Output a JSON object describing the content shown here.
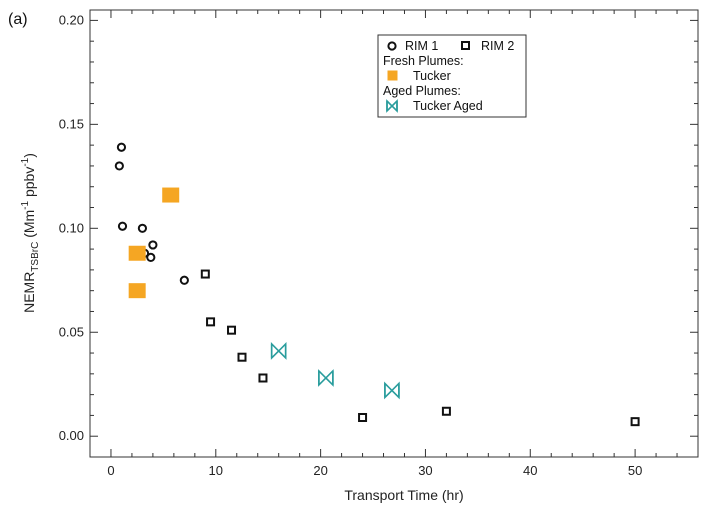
{
  "chart_data": {
    "type": "scatter",
    "panel_label": "(a)",
    "xlabel": "Transport Time (hr)",
    "ylabel": {
      "base": "NEMR",
      "sub": "TSBrC",
      "rest": " (Mm",
      "sup1": "-1",
      "mid": " ppbv",
      "sup2": "-1",
      "end": ")"
    },
    "xlim": [
      -2,
      56
    ],
    "ylim": [
      -0.01,
      0.205
    ],
    "x_ticks": [
      0,
      10,
      20,
      30,
      40,
      50
    ],
    "y_ticks": [
      0.0,
      0.05,
      0.1,
      0.15,
      0.2
    ],
    "y_tick_labels": [
      "0.00",
      "0.05",
      "0.10",
      "0.15",
      "0.20"
    ],
    "x_tick_labels": [
      "0",
      "10",
      "20",
      "30",
      "40",
      "50"
    ],
    "series": [
      {
        "name": "RIM 1",
        "marker": "circle",
        "color": "#111111",
        "x": [
          0.8,
          1.0,
          1.1,
          3.0,
          3.2,
          3.8,
          4.0,
          7.0
        ],
        "y": [
          0.13,
          0.139,
          0.101,
          0.1,
          0.088,
          0.086,
          0.092,
          0.075
        ]
      },
      {
        "name": "RIM 2",
        "marker": "square-open",
        "color": "#111111",
        "x": [
          9.0,
          9.5,
          11.5,
          12.5,
          14.5,
          24.0,
          32.0,
          50.0
        ],
        "y": [
          0.078,
          0.055,
          0.051,
          0.038,
          0.028,
          0.009,
          0.012,
          0.007
        ]
      },
      {
        "name": "Tucker",
        "marker": "square-filled",
        "color": "#f5a623",
        "x": [
          2.5,
          2.5,
          5.7
        ],
        "y": [
          0.088,
          0.07,
          0.116
        ]
      },
      {
        "name": "Tucker Aged",
        "marker": "bowtie",
        "color": "#2a9d9d",
        "x": [
          16.0,
          20.5,
          26.8
        ],
        "y": [
          0.041,
          0.028,
          0.022
        ]
      }
    ],
    "legend": {
      "placement": "top-right",
      "entries": [
        {
          "label": "RIM 1",
          "marker": "circle"
        },
        {
          "label": "RIM 2",
          "marker": "square-open"
        },
        {
          "header": "Fresh Plumes:"
        },
        {
          "label": "Tucker",
          "marker": "square-filled"
        },
        {
          "header": "Aged Plumes:"
        },
        {
          "label": "Tucker Aged",
          "marker": "bowtie"
        }
      ]
    },
    "grid": false
  }
}
